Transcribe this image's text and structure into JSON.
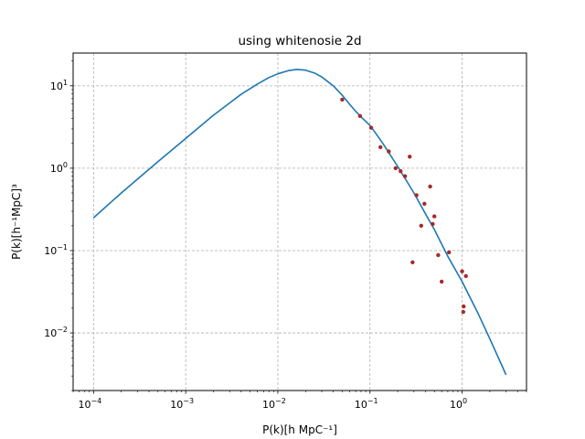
{
  "chart_data": {
    "type": "line",
    "title": "using whitenosie 2d",
    "xlabel": "P(k)[h MpC⁻¹]",
    "ylabel": "P(k)[h⁻¹MpC]³",
    "xscale": "log",
    "yscale": "log",
    "xlim": [
      6e-05,
      5.0
    ],
    "ylim": [
      0.002,
      25
    ],
    "grid": true,
    "grid_style": "dashed",
    "x_ticks": [
      {
        "base": "10",
        "exp": "−4",
        "value": 0.0001
      },
      {
        "base": "10",
        "exp": "−3",
        "value": 0.001
      },
      {
        "base": "10",
        "exp": "−2",
        "value": 0.01
      },
      {
        "base": "10",
        "exp": "−1",
        "value": 0.1
      },
      {
        "base": "10",
        "exp": "0",
        "value": 1.0
      }
    ],
    "y_ticks": [
      {
        "base": "10",
        "exp": "−2",
        "value": 0.01
      },
      {
        "base": "10",
        "exp": "−1",
        "value": 0.1
      },
      {
        "base": "10",
        "exp": "0",
        "value": 1.0
      },
      {
        "base": "10",
        "exp": "1",
        "value": 10.0
      }
    ],
    "series": [
      {
        "kind": "line",
        "color": "#1f77b4",
        "x": [
          0.0001,
          0.0002,
          0.0005,
          0.001,
          0.002,
          0.004,
          0.006,
          0.008,
          0.01,
          0.013,
          0.016,
          0.02,
          0.025,
          0.03,
          0.04,
          0.05,
          0.06,
          0.07,
          0.08,
          0.09,
          0.1,
          0.12,
          0.14,
          0.16,
          0.2,
          0.25,
          0.3,
          0.4,
          0.5,
          0.7,
          1.0,
          1.5,
          2.0,
          3.0
        ],
        "y": [
          0.25,
          0.5,
          1.2,
          2.3,
          4.4,
          7.9,
          10.5,
          12.6,
          14.0,
          15.3,
          15.8,
          15.5,
          14.3,
          12.8,
          10.0,
          7.7,
          6.0,
          4.9,
          4.2,
          3.7,
          3.3,
          2.5,
          1.95,
          1.55,
          1.05,
          0.7,
          0.5,
          0.28,
          0.18,
          0.085,
          0.042,
          0.017,
          0.0085,
          0.0031
        ]
      },
      {
        "kind": "scatter",
        "color": "#a52a2a",
        "x": [
          0.05,
          0.078,
          0.103,
          0.13,
          0.16,
          0.19,
          0.215,
          0.24,
          0.27,
          0.29,
          0.32,
          0.36,
          0.39,
          0.45,
          0.48,
          0.5,
          0.55,
          0.6,
          0.72,
          1.0,
          1.03,
          1.04,
          1.1
        ],
        "y": [
          6.8,
          4.3,
          3.1,
          1.8,
          1.6,
          1.0,
          0.92,
          0.8,
          1.38,
          0.072,
          0.47,
          0.2,
          0.37,
          0.6,
          0.21,
          0.26,
          0.088,
          0.042,
          0.095,
          0.056,
          0.018,
          0.021,
          0.049
        ]
      }
    ]
  }
}
